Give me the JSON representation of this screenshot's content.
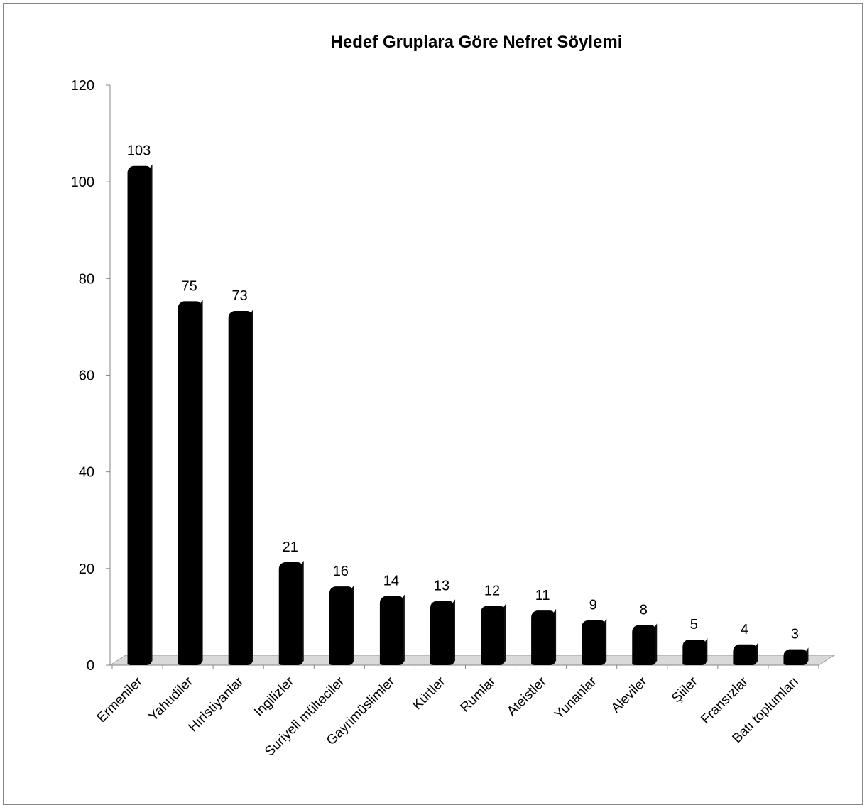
{
  "chart_data": {
    "type": "bar",
    "title": "Hedef Gruplara Göre Nefret Söylemi",
    "categories": [
      "Ermeniler",
      "Yahudiler",
      "Hıristiyanlar",
      "İngilizler",
      "Suriyeli mülteciler",
      "Gayrimüslimler",
      "Kürtler",
      "Rumlar",
      "Ateistler",
      "Yunanlar",
      "Aleviler",
      "Şiiler",
      "Fransızlar",
      "Batı toplumları"
    ],
    "values": [
      103,
      75,
      73,
      21,
      16,
      14,
      13,
      12,
      11,
      9,
      8,
      5,
      4,
      3
    ],
    "ylim": [
      0,
      120
    ],
    "yticks": [
      0,
      20,
      40,
      60,
      80,
      100,
      120
    ],
    "grid": false,
    "legend": "none",
    "bar_color": "#000000",
    "floor_color": "#d9d9d9"
  }
}
